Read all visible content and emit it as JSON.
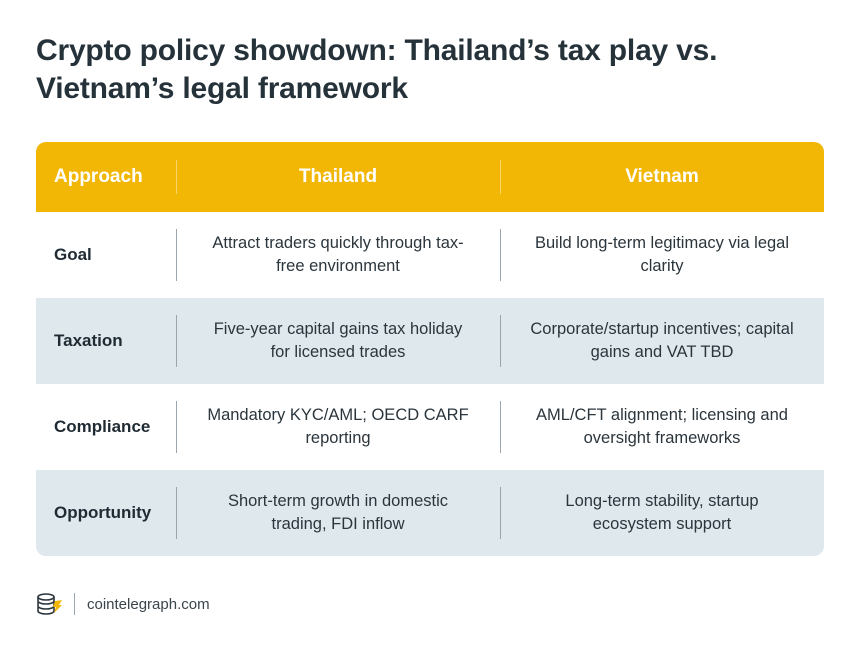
{
  "title": "Crypto policy showdown: Thailand’s tax play vs. Vietnam’s legal framework",
  "table": {
    "headers": [
      "Approach",
      "Thailand",
      "Vietnam"
    ],
    "rows": [
      {
        "label": "Goal",
        "thailand": "Attract traders quickly through tax-free environment",
        "vietnam": "Build long-term legitimacy via legal clarity"
      },
      {
        "label": "Taxation",
        "thailand": "Five-year capital gains tax holiday for licensed trades",
        "vietnam": "Corporate/startup incentives; capital gains and VAT TBD"
      },
      {
        "label": "Compliance",
        "thailand": "Mandatory KYC/AML; OECD CARF reporting",
        "vietnam": "AML/CFT alignment; licensing and oversight frameworks"
      },
      {
        "label": "Opportunity",
        "thailand": "Short-term growth in domestic trading, FDI inflow",
        "vietnam": "Long-term stability, startup ecosystem support"
      }
    ]
  },
  "footer": {
    "logo_icon": "cointelegraph-logo-icon",
    "source": "cointelegraph.com"
  },
  "colors": {
    "header_bg": "#f2b705",
    "shaded_row_bg": "#dfe8ed",
    "title_text": "#26323a"
  }
}
